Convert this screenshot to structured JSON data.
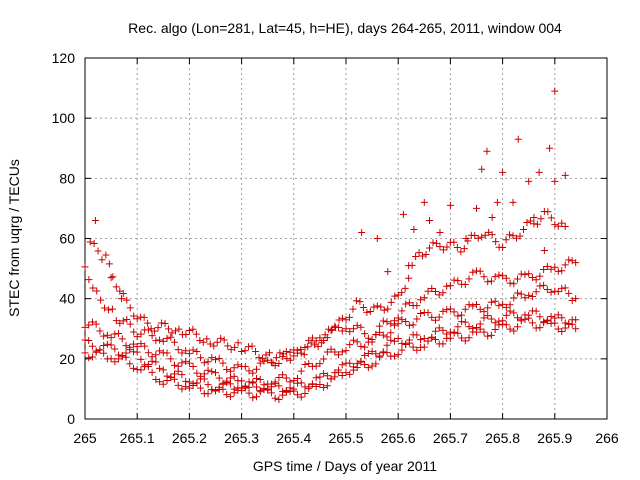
{
  "chart_data": {
    "type": "scatter",
    "title": "Rec. algo (Lon=281, Lat=45, h=HE), days 264-265, 2011, window 004",
    "xlabel": "GPS time / Days of year 2011",
    "ylabel": "STEC from uqrg / TECUs",
    "xlim": [
      265,
      266
    ],
    "ylim": [
      0,
      120
    ],
    "x_ticks": [
      265,
      265.1,
      265.2,
      265.3,
      265.4,
      265.5,
      265.6,
      265.7,
      265.8,
      265.9,
      266
    ],
    "x_tick_labels": [
      "265",
      "265.1",
      "265.2",
      "265.3",
      "265.4",
      "265.5",
      "265.6",
      "265.7",
      "265.8",
      "265.9",
      "266"
    ],
    "y_ticks": [
      0,
      20,
      40,
      60,
      80,
      100,
      120
    ],
    "y_tick_labels": [
      "0",
      "20",
      "40",
      "60",
      "80",
      "100",
      "120"
    ],
    "grid": true,
    "marker": "+",
    "color": "#cc0000",
    "series": [
      {
        "bands": [
          [
            [
              265.0,
              22
            ],
            [
              265.05,
              21
            ],
            [
              265.1,
              18
            ],
            [
              265.15,
              13
            ],
            [
              265.2,
              11
            ],
            [
              265.25,
              9
            ],
            [
              265.3,
              9
            ],
            [
              265.35,
              8
            ],
            [
              265.4,
              8
            ],
            [
              265.45,
              11
            ],
            [
              265.5,
              16
            ],
            [
              265.55,
              19
            ],
            [
              265.6,
              23
            ],
            [
              265.65,
              25
            ],
            [
              265.7,
              27
            ],
            [
              265.75,
              28
            ],
            [
              265.8,
              30
            ],
            [
              265.85,
              32
            ],
            [
              265.9,
              31
            ],
            [
              265.94,
              30
            ]
          ],
          [
            [
              265.0,
              25
            ],
            [
              265.05,
              23
            ],
            [
              265.1,
              21
            ],
            [
              265.15,
              16
            ],
            [
              265.2,
              13
            ],
            [
              265.25,
              11
            ],
            [
              265.3,
              11
            ],
            [
              265.35,
              11
            ],
            [
              265.4,
              10
            ],
            [
              265.45,
              13
            ],
            [
              265.5,
              17
            ],
            [
              265.55,
              21
            ],
            [
              265.6,
              26
            ],
            [
              265.65,
              27
            ],
            [
              265.7,
              30
            ],
            [
              265.75,
              32
            ],
            [
              265.8,
              34
            ],
            [
              265.85,
              35
            ],
            [
              265.9,
              33
            ],
            [
              265.94,
              33
            ]
          ],
          [
            [
              265.0,
              32
            ],
            [
              265.05,
              28
            ],
            [
              265.1,
              24
            ],
            [
              265.15,
              21
            ],
            [
              265.2,
              17
            ],
            [
              265.25,
              14
            ],
            [
              265.3,
              12
            ],
            [
              265.35,
              12
            ],
            [
              265.4,
              14
            ],
            [
              265.45,
              20
            ],
            [
              265.5,
              24
            ],
            [
              265.55,
              26
            ],
            [
              265.6,
              31
            ],
            [
              265.65,
              34
            ],
            [
              265.7,
              35
            ],
            [
              265.75,
              37
            ],
            [
              265.8,
              38
            ],
            [
              265.85,
              42
            ],
            [
              265.9,
              44
            ],
            [
              265.94,
              40
            ]
          ],
          [
            [
              265.0,
              50
            ],
            [
              265.03,
              40
            ],
            [
              265.06,
              34
            ],
            [
              265.1,
              29
            ],
            [
              265.15,
              27
            ],
            [
              265.2,
              22
            ],
            [
              265.25,
              19
            ],
            [
              265.3,
              16
            ],
            [
              265.35,
              18
            ],
            [
              265.4,
              22
            ],
            [
              265.45,
              27
            ],
            [
              265.5,
              31
            ],
            [
              265.55,
              28
            ],
            [
              265.6,
              35
            ],
            [
              265.65,
              41
            ],
            [
              265.7,
              44
            ],
            [
              265.75,
              48
            ],
            [
              265.8,
              46
            ],
            [
              265.85,
              47
            ],
            [
              265.9,
              50
            ],
            [
              265.94,
              52
            ]
          ],
          [
            [
              265.01,
              58
            ],
            [
              265.04,
              53
            ],
            [
              265.08,
              38
            ],
            [
              265.12,
              31
            ],
            [
              265.18,
              30
            ],
            [
              265.24,
              26
            ],
            [
              265.3,
              24
            ],
            [
              265.36,
              20
            ],
            [
              265.42,
              22
            ],
            [
              265.48,
              30
            ],
            [
              265.52,
              38
            ],
            [
              265.56,
              36
            ],
            [
              265.6,
              40
            ],
            [
              265.64,
              55
            ],
            [
              265.68,
              58
            ],
            [
              265.72,
              57
            ],
            [
              265.76,
              62
            ],
            [
              265.8,
              58
            ],
            [
              265.84,
              63
            ],
            [
              265.88,
              68
            ],
            [
              265.92,
              64
            ]
          ]
        ],
        "points": [
          [
            265.02,
            66
          ],
          [
            265.05,
            47
          ],
          [
            265.07,
            40
          ],
          [
            265.53,
            62
          ],
          [
            265.56,
            60
          ],
          [
            265.58,
            49
          ],
          [
            265.61,
            68
          ],
          [
            265.63,
            63
          ],
          [
            265.65,
            72
          ],
          [
            265.68,
            62
          ],
          [
            265.7,
            71
          ],
          [
            265.73,
            60
          ],
          [
            265.75,
            70
          ],
          [
            265.76,
            83
          ],
          [
            265.77,
            89
          ],
          [
            265.79,
            72
          ],
          [
            265.8,
            82
          ],
          [
            265.82,
            72
          ],
          [
            265.83,
            93
          ],
          [
            265.85,
            79
          ],
          [
            265.86,
            67
          ],
          [
            265.87,
            82
          ],
          [
            265.89,
            90
          ],
          [
            265.9,
            79
          ],
          [
            265.9,
            109
          ],
          [
            265.92,
            81
          ],
          [
            265.88,
            56
          ],
          [
            265.78,
            67
          ],
          [
            265.66,
            66
          ],
          [
            265.62,
            51
          ]
        ]
      }
    ]
  }
}
